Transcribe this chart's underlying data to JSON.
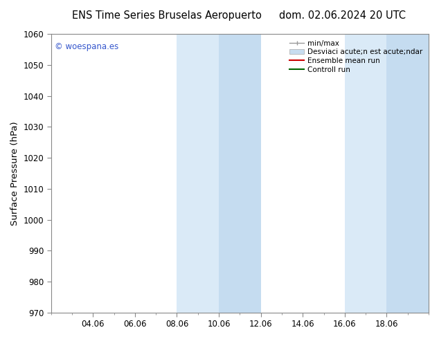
{
  "title_left": "ENS Time Series Bruselas Aeropuerto",
  "title_right": "dom. 02.06.2024 20 UTC",
  "ylabel": "Surface Pressure (hPa)",
  "ylim": [
    970,
    1060
  ],
  "yticks": [
    970,
    980,
    990,
    1000,
    1010,
    1020,
    1030,
    1040,
    1050,
    1060
  ],
  "xlim": [
    0,
    18
  ],
  "xtick_labels": [
    "04.06",
    "06.06",
    "08.06",
    "10.06",
    "12.06",
    "14.06",
    "16.06",
    "18.06"
  ],
  "xtick_positions": [
    2,
    4,
    6,
    8,
    10,
    12,
    14,
    16
  ],
  "shaded_bands": [
    {
      "x_start": 6.0,
      "x_end": 8.0,
      "color": "#daeaf7"
    },
    {
      "x_start": 8.0,
      "x_end": 10.0,
      "color": "#c5dcf0"
    },
    {
      "x_start": 14.0,
      "x_end": 16.0,
      "color": "#daeaf7"
    },
    {
      "x_start": 16.0,
      "x_end": 18.0,
      "color": "#c5dcf0"
    }
  ],
  "legend_entries": [
    {
      "label": "min/max",
      "color": "#999999",
      "lw": 1.0,
      "type": "line_ticks"
    },
    {
      "label": "Desviaci acute;n est acute;ndar",
      "color": "#c8ddf0",
      "lw": 8,
      "type": "bar"
    },
    {
      "label": "Ensemble mean run",
      "color": "#cc0000",
      "lw": 1.5,
      "type": "line"
    },
    {
      "label": "Controll run",
      "color": "#006600",
      "lw": 1.5,
      "type": "line"
    }
  ],
  "watermark_text": "© woespana.es",
  "watermark_color": "#3355cc",
  "bg_color": "#ffffff",
  "axes_bg_color": "#ffffff",
  "tick_label_fontsize": 8.5,
  "axis_label_fontsize": 9.5,
  "title_fontsize": 10.5,
  "legend_fontsize": 7.5
}
